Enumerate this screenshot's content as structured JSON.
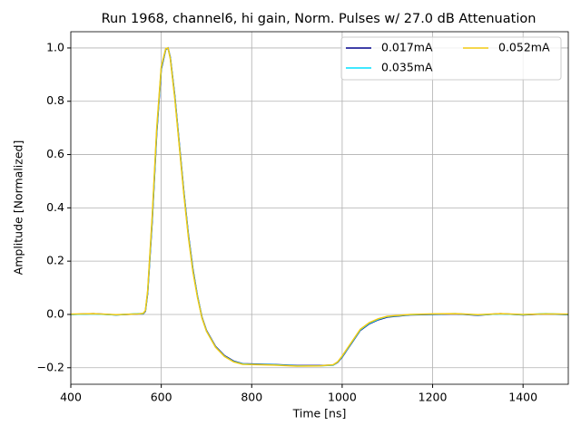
{
  "chart_data": {
    "type": "line",
    "title": "Run 1968, channel6, hi gain, Norm. Pulses w/ 27.0 dB Attenuation",
    "x_label": "Time [ns]",
    "y_label": "Amplitude [Normalized]",
    "x": [
      400,
      450,
      500,
      550,
      560,
      565,
      570,
      580,
      590,
      600,
      610,
      615,
      620,
      630,
      640,
      650,
      660,
      670,
      680,
      690,
      700,
      720,
      740,
      760,
      780,
      800,
      850,
      900,
      950,
      980,
      990,
      1000,
      1020,
      1040,
      1060,
      1080,
      1100,
      1150,
      1200,
      1250,
      1300,
      1350,
      1400,
      1450,
      1500
    ],
    "series": [
      {
        "name": "0.017mA",
        "color": "#00008b",
        "values": [
          0,
          0.003,
          -0.002,
          0.002,
          0.002,
          0.012,
          0.08,
          0.35,
          0.68,
          0.92,
          0.995,
          1.0,
          0.965,
          0.82,
          0.64,
          0.46,
          0.3,
          0.17,
          0.07,
          -0.01,
          -0.06,
          -0.12,
          -0.155,
          -0.175,
          -0.185,
          -0.186,
          -0.188,
          -0.192,
          -0.192,
          -0.19,
          -0.18,
          -0.16,
          -0.11,
          -0.06,
          -0.035,
          -0.02,
          -0.01,
          -0.002,
          0,
          0.002,
          -0.003,
          0.003,
          -0.002,
          0.002,
          -0.001
        ]
      },
      {
        "name": "0.035mA",
        "color": "#00e0ff",
        "values": [
          0,
          0.002,
          -0.002,
          0.003,
          0.003,
          0.014,
          0.085,
          0.36,
          0.69,
          0.925,
          0.997,
          1.0,
          0.962,
          0.815,
          0.635,
          0.455,
          0.295,
          0.165,
          0.068,
          -0.012,
          -0.062,
          -0.122,
          -0.157,
          -0.177,
          -0.186,
          -0.187,
          -0.189,
          -0.193,
          -0.193,
          -0.19,
          -0.179,
          -0.158,
          -0.108,
          -0.058,
          -0.033,
          -0.018,
          -0.008,
          -0.001,
          0.001,
          0.003,
          -0.002,
          0.002,
          -0.001,
          0.003,
          0
        ]
      },
      {
        "name": "0.052mA",
        "color": "#f2c811",
        "values": [
          0.001,
          0.003,
          -0.001,
          0.002,
          0.004,
          0.015,
          0.09,
          0.37,
          0.7,
          0.93,
          0.998,
          1.0,
          0.96,
          0.81,
          0.63,
          0.45,
          0.29,
          0.16,
          0.065,
          -0.013,
          -0.063,
          -0.123,
          -0.158,
          -0.178,
          -0.187,
          -0.188,
          -0.19,
          -0.194,
          -0.193,
          -0.189,
          -0.178,
          -0.156,
          -0.106,
          -0.056,
          -0.031,
          -0.016,
          -0.007,
          0,
          0.002,
          0.003,
          -0.001,
          0.003,
          0,
          0.002,
          0.001
        ]
      }
    ],
    "xlim": [
      400,
      1500
    ],
    "xticks": [
      400,
      600,
      800,
      1000,
      1200,
      1400
    ],
    "ylim": [
      -0.262,
      1.061
    ],
    "yticks": [
      {
        "value": -0.2,
        "label": "−0.2"
      },
      {
        "value": 0.0,
        "label": "0.0"
      },
      0.2,
      0.4,
      0.6,
      0.8,
      {
        "value": 1.0,
        "label": "1.0"
      }
    ],
    "grid": true,
    "legend": "upper-right"
  }
}
